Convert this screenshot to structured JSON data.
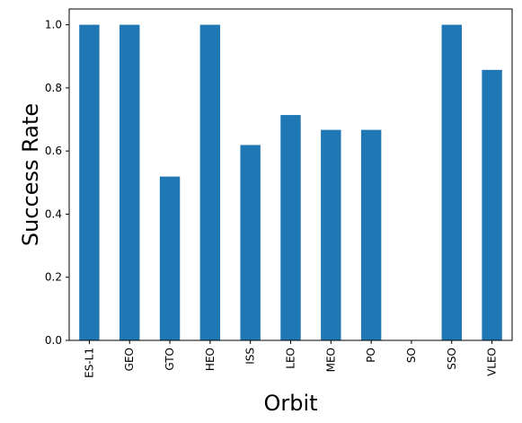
{
  "chart_data": {
    "type": "bar",
    "title": "",
    "xlabel": "Orbit",
    "ylabel": "Success Rate",
    "categories": [
      "ES-L1",
      "GEO",
      "GTO",
      "HEO",
      "ISS",
      "LEO",
      "MEO",
      "PO",
      "SO",
      "SSO",
      "VLEO"
    ],
    "values": [
      1.0,
      1.0,
      0.519,
      1.0,
      0.619,
      0.714,
      0.667,
      0.667,
      0.0,
      1.0,
      0.857
    ],
    "ylim": [
      0,
      1.05
    ],
    "yticks": [
      "0.0",
      "0.2",
      "0.4",
      "0.6",
      "0.8",
      "1.0"
    ],
    "bar_color": "#1f77b4",
    "grid": false,
    "legend": "none"
  }
}
